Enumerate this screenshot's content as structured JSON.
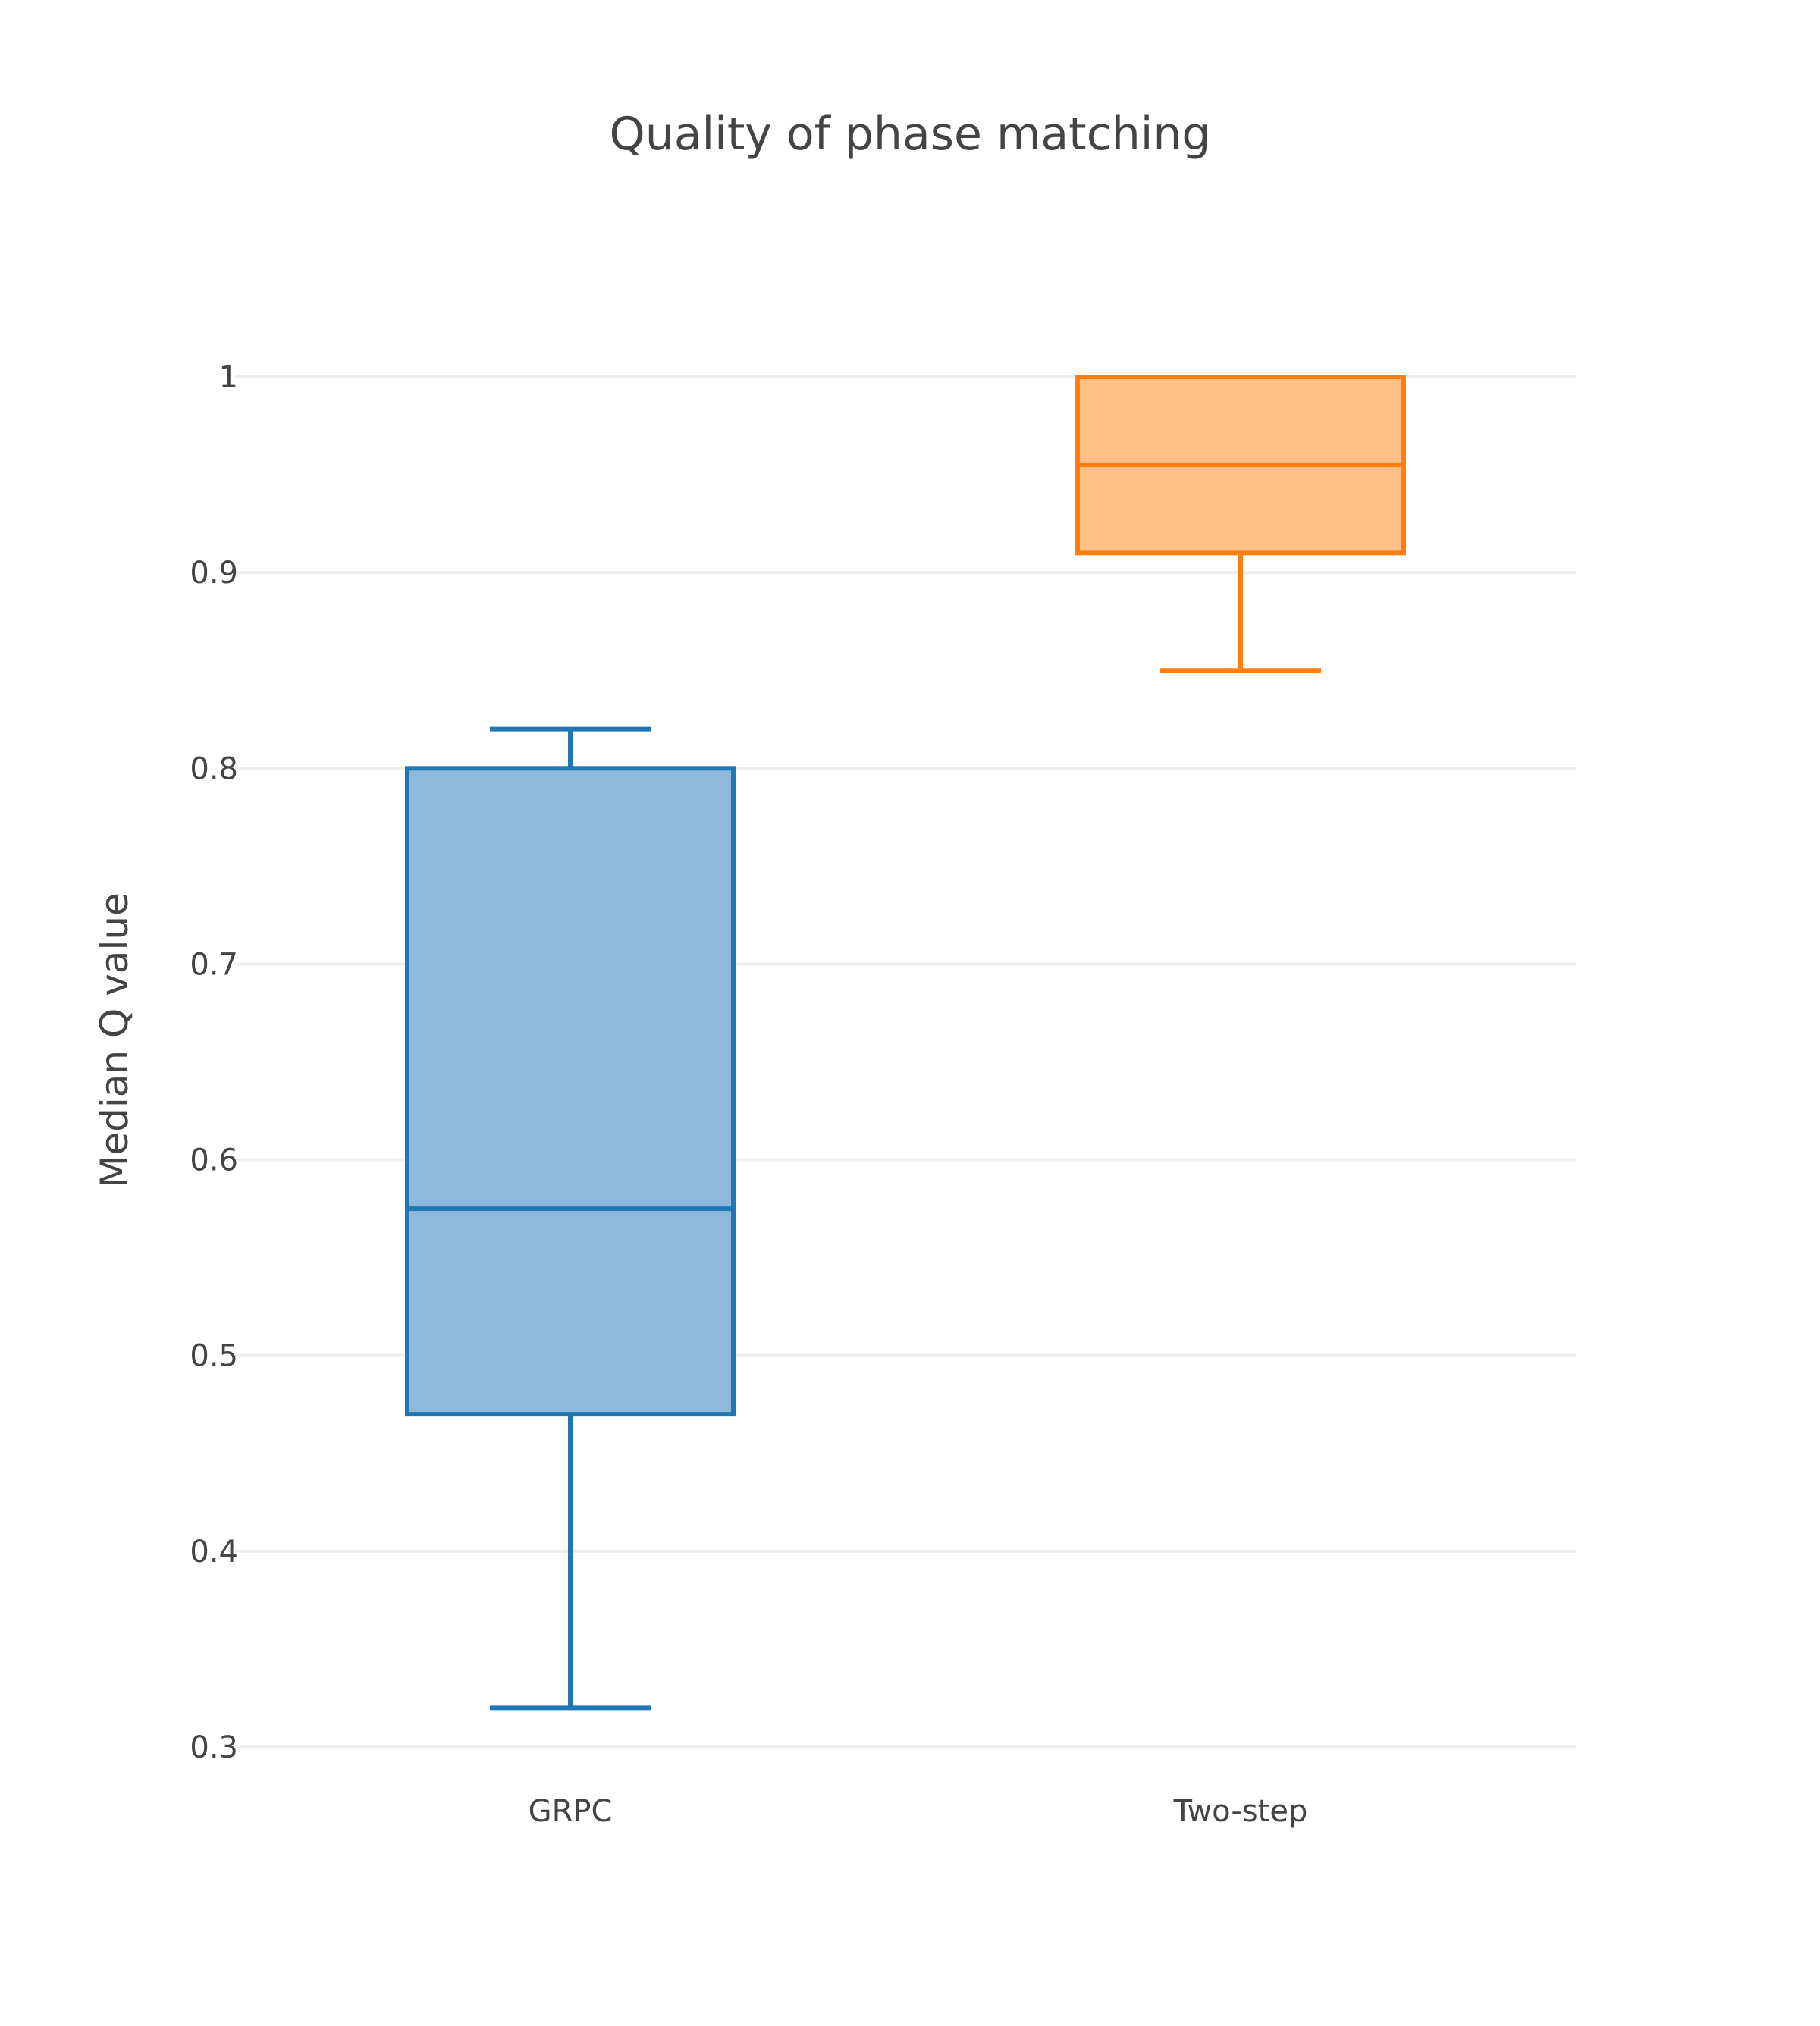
{
  "chart_data": {
    "type": "box",
    "title": "Quality of phase matching",
    "xlabel": "",
    "ylabel": "Median Q value",
    "ylim": [
      0.3,
      1
    ],
    "y_ticks": [
      0.3,
      0.4,
      0.5,
      0.6,
      0.7,
      0.8,
      0.9,
      1
    ],
    "y_tick_labels": [
      "0.3",
      "0.4",
      "0.5",
      "0.6",
      "0.7",
      "0.8",
      "0.9",
      "1"
    ],
    "grid": true,
    "legend": "none",
    "categories": [
      "GRPC",
      "Two-step"
    ],
    "series": [
      {
        "category": "GRPC",
        "min": 0.32,
        "q1": 0.47,
        "median": 0.575,
        "q3": 0.8,
        "max": 0.82,
        "line_color": "#1f77b4",
        "fill_color": "#8fb9da"
      },
      {
        "category": "Two-step",
        "min": 0.85,
        "q1": 0.91,
        "median": 0.955,
        "q3": 1.0,
        "max": 1.0,
        "line_color": "#ff7f0e",
        "fill_color": "#ffbf87"
      }
    ]
  }
}
